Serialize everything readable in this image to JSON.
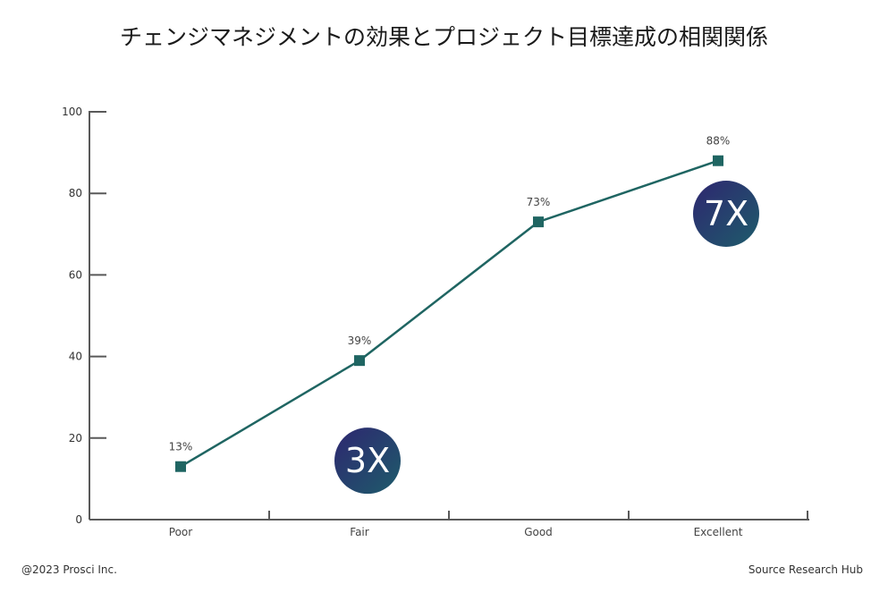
{
  "chart_data": {
    "type": "line",
    "title": "チェンジマネジメントの効果とプロジェクト目標達成の相関関係",
    "categories": [
      "Poor",
      "Fair",
      "Good",
      "Excellent"
    ],
    "values": [
      13,
      39,
      73,
      88
    ],
    "data_labels": [
      "13%",
      "39%",
      "73%",
      "88%"
    ],
    "y_ticks": [
      "0",
      "20",
      "40",
      "60",
      "80",
      "100"
    ],
    "ylim": [
      0,
      100
    ],
    "grid": false,
    "annotations": [
      {
        "text": "3X",
        "category": "Fair",
        "y": 14
      },
      {
        "text": "7X",
        "category": "Excellent",
        "y": 75
      }
    ],
    "colors": {
      "line": "#1f6562",
      "marker": "#1f6562",
      "axis": "#595959",
      "badge_start": "#2e2670",
      "badge_end": "#1e5c6b"
    }
  },
  "footer": {
    "copyright": "@2023 Prosci Inc.",
    "source": "Source Research Hub"
  }
}
